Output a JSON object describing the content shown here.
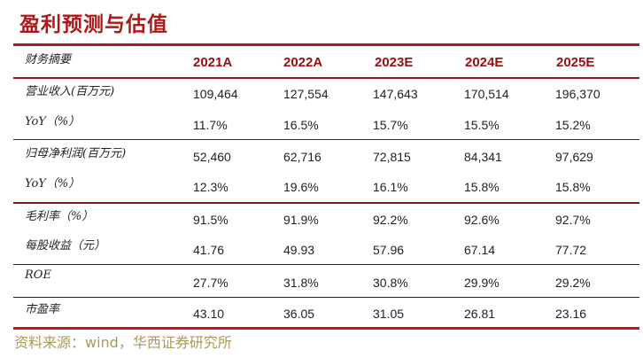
{
  "title": "盈利预测与估值",
  "table": {
    "header_label": "财务摘要",
    "columns": [
      "2021A",
      "2022A",
      "2023E",
      "2024E",
      "2025E"
    ],
    "rows": [
      {
        "label": "营业收入(百万元)",
        "values": [
          "109,464",
          "127,554",
          "147,643",
          "170,514",
          "196,370"
        ]
      },
      {
        "label": "YoY（%）",
        "values": [
          "11.7%",
          "16.5%",
          "15.7%",
          "15.5%",
          "15.2%"
        ]
      },
      {
        "label": "归母净利润(百万元)",
        "values": [
          "52,460",
          "62,716",
          "72,815",
          "84,341",
          "97,629"
        ]
      },
      {
        "label": "YoY（%）",
        "values": [
          "12.3%",
          "19.6%",
          "16.1%",
          "15.8%",
          "15.8%"
        ]
      },
      {
        "label": "毛利率（%）",
        "values": [
          "91.5%",
          "91.9%",
          "92.2%",
          "92.6%",
          "92.7%"
        ]
      },
      {
        "label": "每股收益（元）",
        "values": [
          "41.76",
          "49.93",
          "57.96",
          "67.14",
          "77.72"
        ]
      },
      {
        "label": "ROE",
        "values": [
          "27.7%",
          "31.8%",
          "30.8%",
          "29.9%",
          "29.2%"
        ]
      },
      {
        "label": "市盈率",
        "values": [
          "43.10",
          "36.05",
          "31.05",
          "26.81",
          "23.16"
        ]
      }
    ]
  },
  "source": "资料来源：wind，华西证券研究所",
  "colors": {
    "accent": "#b01818",
    "header_text": "#9a0d10",
    "source_text": "#a89a5a"
  }
}
